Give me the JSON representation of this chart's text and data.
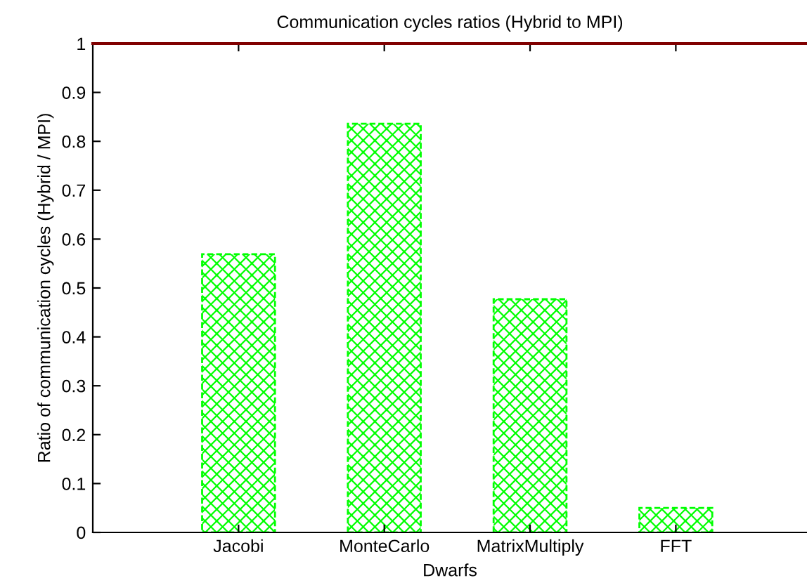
{
  "chart_data": {
    "type": "bar",
    "title": "Communication cycles ratios (Hybrid to MPI)",
    "xlabel": "Dwarfs",
    "ylabel": "Ratio of communication cycles (Hybrid / MPI)",
    "categories": [
      "Jacobi",
      "MonteCarlo",
      "MatrixMultiply",
      "FFT"
    ],
    "values": [
      0.569,
      0.836,
      0.477,
      0.05
    ],
    "color": "#00ff00",
    "ylim": [
      0,
      1
    ],
    "yticks": [
      0,
      0.1,
      0.2,
      0.3,
      0.4,
      0.5,
      0.6,
      0.7,
      0.8,
      0.9,
      1
    ],
    "grid": false,
    "legend": false
  }
}
